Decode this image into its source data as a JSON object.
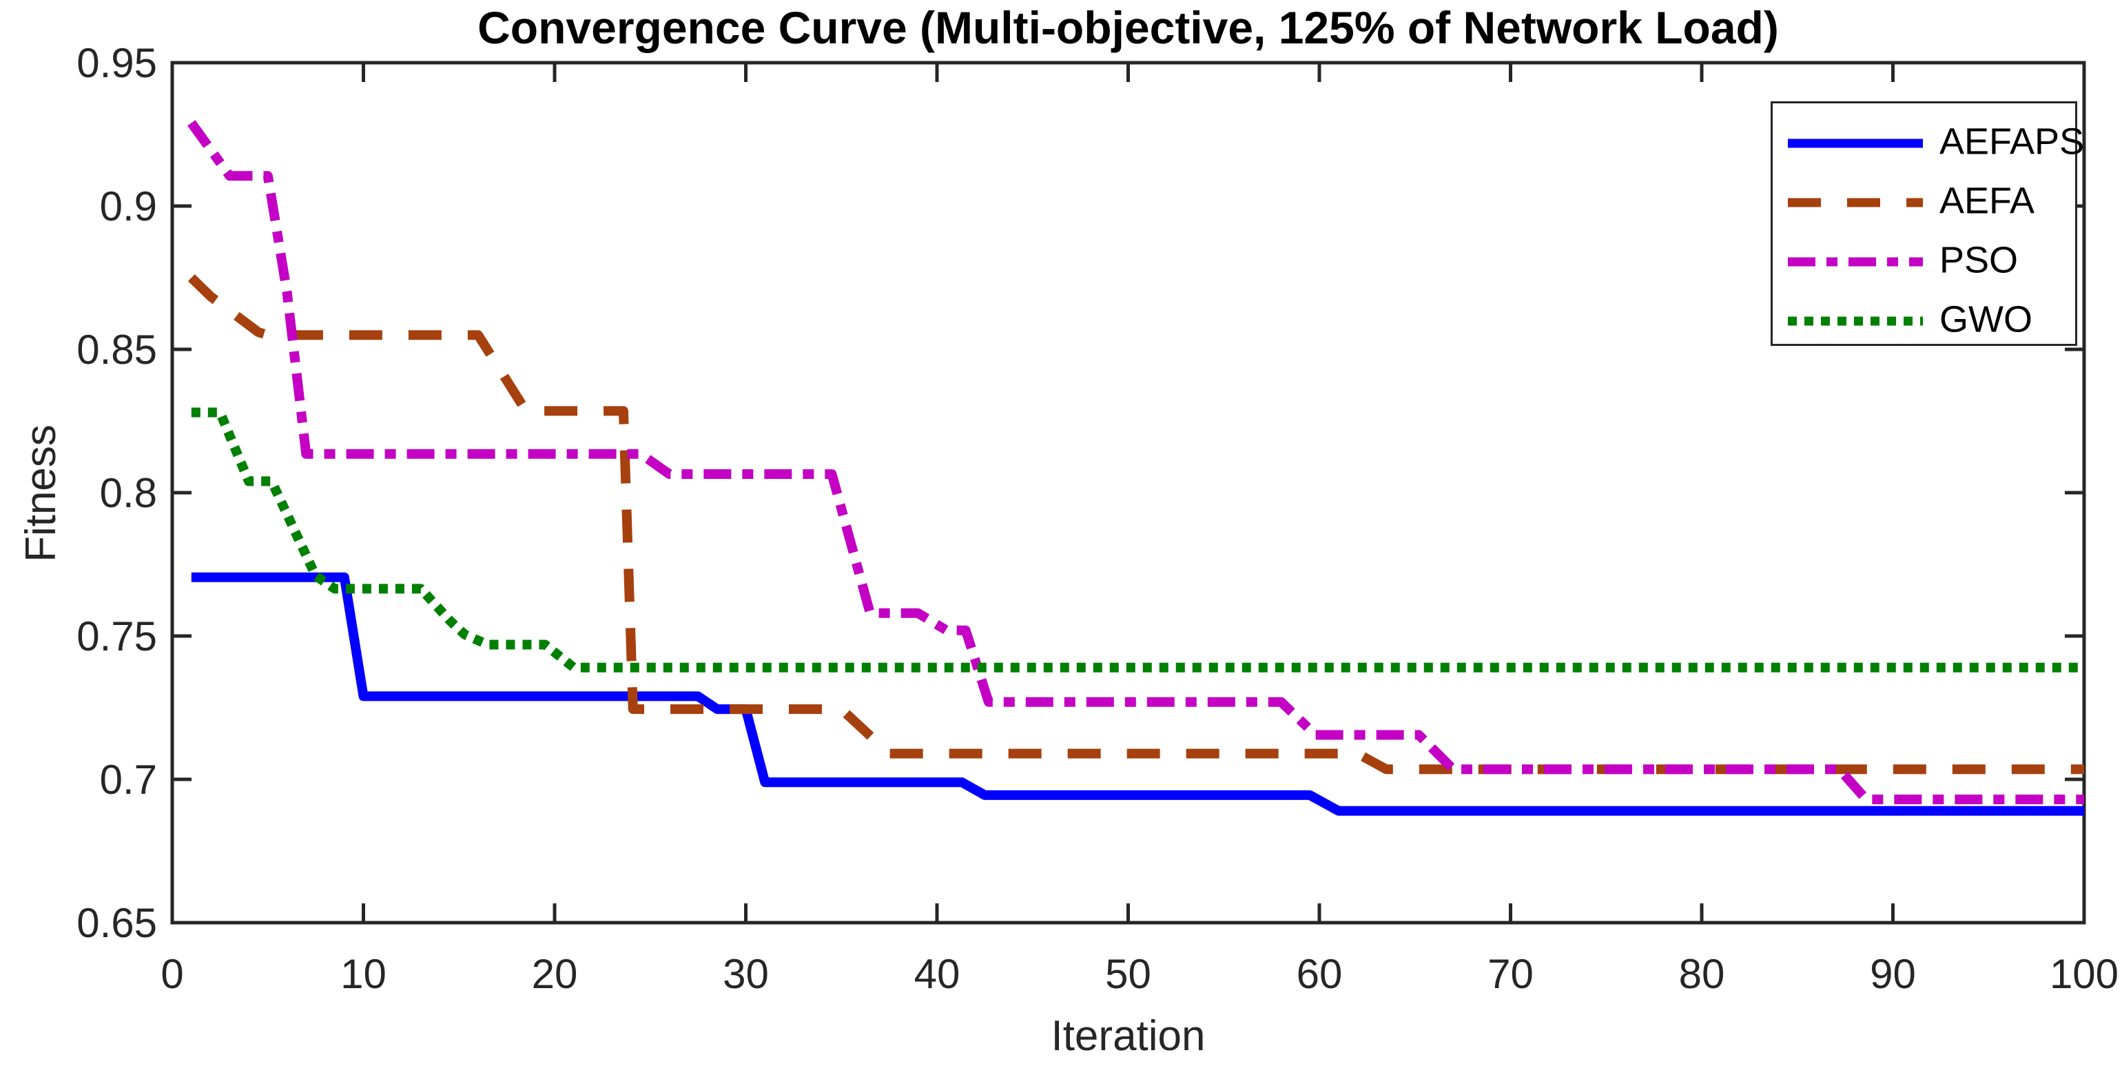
{
  "chart_data": {
    "type": "line",
    "title": "Convergence Curve (Multi-objective, 125% of Network Load)",
    "xlabel": "Iteration",
    "ylabel": "Fitness",
    "xlim": [
      0,
      100
    ],
    "ylim": [
      0.65,
      0.95
    ],
    "xticks": [
      0,
      10,
      20,
      30,
      40,
      50,
      60,
      70,
      80,
      90,
      100
    ],
    "ytick_labels": [
      "0.65",
      "0.7",
      "0.75",
      "0.8",
      "0.85",
      "0.9",
      "0.95"
    ],
    "yticks": [
      0.65,
      0.7,
      0.75,
      0.8,
      0.85,
      0.9,
      0.95
    ],
    "grid": false,
    "legend_position": "top-right",
    "axis_color": "#262626",
    "series": [
      {
        "name": "AEFAPS",
        "color": "#0000FF",
        "style": "solid",
        "points": [
          [
            1,
            0.7705
          ],
          [
            9,
            0.7705
          ],
          [
            10,
            0.729
          ],
          [
            27.5,
            0.729
          ],
          [
            28.5,
            0.7245
          ],
          [
            30,
            0.7245
          ],
          [
            31,
            0.699
          ],
          [
            41.3,
            0.699
          ],
          [
            42.5,
            0.6945
          ],
          [
            59.5,
            0.6945
          ],
          [
            61,
            0.689
          ],
          [
            100,
            0.689
          ]
        ]
      },
      {
        "name": "AEFA",
        "color": "#A6400E",
        "style": "dashed",
        "points": [
          [
            1,
            0.875
          ],
          [
            2,
            0.8685
          ],
          [
            4.5,
            0.856
          ],
          [
            5,
            0.855
          ],
          [
            16,
            0.855
          ],
          [
            18.5,
            0.8285
          ],
          [
            23.6,
            0.8285
          ],
          [
            24.1,
            0.7245
          ],
          [
            35,
            0.7245
          ],
          [
            37.5,
            0.709
          ],
          [
            62,
            0.709
          ],
          [
            63.5,
            0.7035
          ],
          [
            100,
            0.7035
          ]
        ]
      },
      {
        "name": "PSO",
        "color": "#C400C4",
        "style": "dashdot",
        "points": [
          [
            1,
            0.929
          ],
          [
            3,
            0.9105
          ],
          [
            5,
            0.9105
          ],
          [
            6,
            0.87
          ],
          [
            7,
            0.8135
          ],
          [
            24.5,
            0.8135
          ],
          [
            26,
            0.8065
          ],
          [
            34.5,
            0.8065
          ],
          [
            36.5,
            0.758
          ],
          [
            39,
            0.758
          ],
          [
            40.5,
            0.752
          ],
          [
            41.5,
            0.752
          ],
          [
            42.7,
            0.727
          ],
          [
            58,
            0.727
          ],
          [
            59.8,
            0.7155
          ],
          [
            65.2,
            0.7155
          ],
          [
            67,
            0.7035
          ],
          [
            87.2,
            0.7035
          ],
          [
            88.6,
            0.693
          ],
          [
            100,
            0.693
          ]
        ]
      },
      {
        "name": "GWO",
        "color": "#008000",
        "style": "dotted",
        "points": [
          [
            1,
            0.828
          ],
          [
            2.5,
            0.828
          ],
          [
            4,
            0.804
          ],
          [
            5.2,
            0.804
          ],
          [
            7.5,
            0.771
          ],
          [
            8.5,
            0.7665
          ],
          [
            13,
            0.7665
          ],
          [
            14.5,
            0.7555
          ],
          [
            15.3,
            0.7505
          ],
          [
            16.5,
            0.747
          ],
          [
            19.5,
            0.747
          ],
          [
            21,
            0.739
          ],
          [
            100,
            0.739
          ]
        ]
      }
    ]
  }
}
